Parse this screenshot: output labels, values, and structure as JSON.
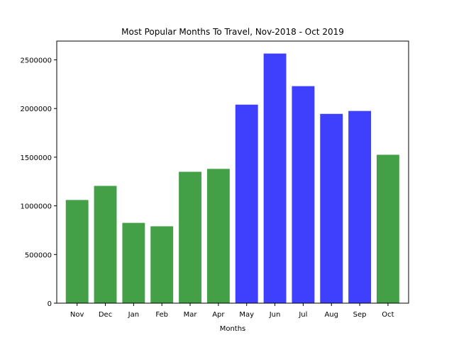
{
  "chart_data": {
    "type": "bar",
    "title": "Most Popular Months To Travel, Nov-2018 - Oct 2019",
    "xlabel": "Months",
    "ylabel": "",
    "categories": [
      "Nov",
      "Dec",
      "Jan",
      "Feb",
      "Mar",
      "Apr",
      "May",
      "Jun",
      "Jul",
      "Aug",
      "Sep",
      "Oct"
    ],
    "values": [
      1060000,
      1205000,
      825000,
      790000,
      1350000,
      1380000,
      2040000,
      2565000,
      2230000,
      1945000,
      1975000,
      1525000
    ],
    "bar_colors": [
      "#43a047",
      "#43a047",
      "#43a047",
      "#43a047",
      "#43a047",
      "#43a047",
      "#3f3ffe",
      "#3f3ffe",
      "#3f3ffe",
      "#3f3ffe",
      "#3f3ffe",
      "#43a047"
    ],
    "yticks": [
      0,
      500000,
      1000000,
      1500000,
      2000000,
      2500000
    ],
    "ytick_labels": [
      "0",
      "500000",
      "1000000",
      "1500000",
      "2000000",
      "2500000"
    ],
    "ylim": [
      0,
      2693000
    ],
    "grid": false,
    "legend": "none"
  }
}
